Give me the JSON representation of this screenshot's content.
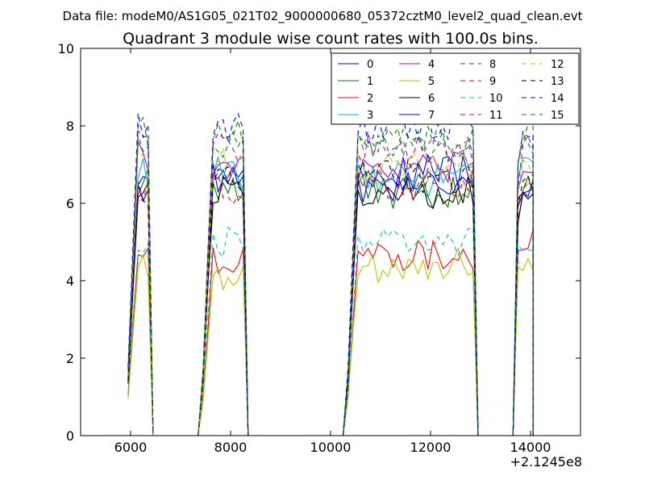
{
  "header": {
    "data_file_label": "Data file: modeM0/AS1G05_021T02_9000000680_05372cztM0_level2_quad_clean.evt"
  },
  "chart_data": {
    "type": "line",
    "title": "Quadrant 3 module wise count rates with 100.0s bins.",
    "xlabel": "",
    "ylabel": "",
    "x_offset_label": "+2.1245e8",
    "xlim": [
      5000,
      15000
    ],
    "ylim": [
      0,
      10
    ],
    "x_ticks": [
      6000,
      8000,
      10000,
      12000,
      14000
    ],
    "y_ticks": [
      0,
      2,
      4,
      6,
      8,
      10
    ],
    "x_tick_labels": [
      "6000",
      "8000",
      "10000",
      "12000",
      "14000"
    ],
    "y_tick_labels": [
      "0",
      "2",
      "4",
      "6",
      "8",
      "10"
    ],
    "grid": false,
    "legend_position": "top-right",
    "legend_columns": 4,
    "segments": [
      {
        "start": 5950,
        "step": 100,
        "count": 5,
        "drop_to": 6450
      },
      {
        "start": 7450,
        "step": 100,
        "count": 9,
        "drop_to": 8350
      },
      {
        "start": 10350,
        "step": 100,
        "count": 26,
        "drop_to": 12950
      },
      {
        "start": 13750,
        "step": 100,
        "count": 4,
        "drop_to": 14050
      }
    ],
    "series": [
      {
        "name": "0",
        "color": "#0000ff",
        "dash": false,
        "levels": [
          6.9,
          6.7,
          6.8,
          6.6
        ]
      },
      {
        "name": "1",
        "color": "#008000",
        "dash": false,
        "levels": [
          6.6,
          6.5,
          6.3,
          6.4
        ]
      },
      {
        "name": "2",
        "color": "#ff0000",
        "dash": false,
        "levels": [
          4.8,
          4.5,
          4.7,
          5.0
        ]
      },
      {
        "name": "3",
        "color": "#00bfbf",
        "dash": false,
        "levels": [
          6.8,
          6.8,
          6.6,
          7.0
        ]
      },
      {
        "name": "4",
        "color": "#bf00bf",
        "dash": false,
        "levels": [
          7.2,
          7.0,
          7.0,
          6.9
        ]
      },
      {
        "name": "5",
        "color": "#bfbf00",
        "dash": false,
        "levels": [
          4.3,
          4.1,
          4.4,
          4.5
        ]
      },
      {
        "name": "6",
        "color": "#000000",
        "dash": false,
        "levels": [
          6.1,
          6.4,
          6.3,
          6.2
        ]
      },
      {
        "name": "7",
        "color": "#0000ff",
        "dash": false,
        "levels": [
          6.4,
          6.6,
          6.4,
          6.5
        ]
      },
      {
        "name": "8",
        "color": "#008000",
        "dash": true,
        "levels": [
          7.9,
          7.7,
          7.6,
          7.8
        ]
      },
      {
        "name": "9",
        "color": "#ff0000",
        "dash": true,
        "levels": [
          6.5,
          6.4,
          6.5,
          6.6
        ]
      },
      {
        "name": "10",
        "color": "#00bfbf",
        "dash": true,
        "levels": [
          4.9,
          5.0,
          5.0,
          5.1
        ]
      },
      {
        "name": "11",
        "color": "#bf00bf",
        "dash": true,
        "levels": [
          7.5,
          7.4,
          7.3,
          7.4
        ]
      },
      {
        "name": "12",
        "color": "#bfbf00",
        "dash": true,
        "levels": [
          7.1,
          7.0,
          6.9,
          7.0
        ]
      },
      {
        "name": "13",
        "color": "#000000",
        "dash": true,
        "levels": [
          6.4,
          6.5,
          6.7,
          6.6
        ]
      },
      {
        "name": "14",
        "color": "#0000ff",
        "dash": true,
        "levels": [
          8.1,
          7.9,
          8.0,
          7.9
        ]
      },
      {
        "name": "15",
        "color": "#008000",
        "dash": true,
        "levels": [
          7.6,
          7.4,
          7.5,
          7.6
        ]
      }
    ]
  }
}
